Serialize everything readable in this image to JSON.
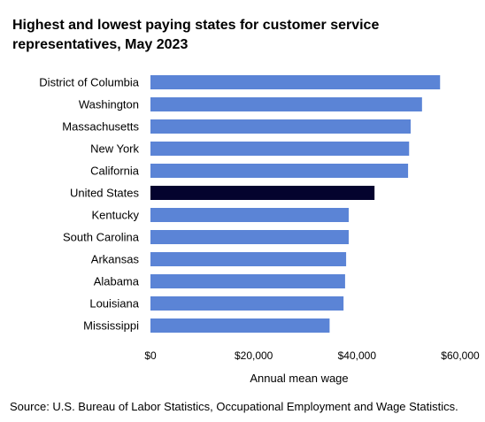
{
  "chart_data": {
    "type": "bar",
    "orientation": "horizontal",
    "title": "Highest and lowest paying states for customer service representatives, May 2023",
    "xlabel": "Annual mean wage",
    "ylabel": "",
    "categories": [
      "District of Columbia",
      "Washington",
      "Massachusetts",
      "New York",
      "California",
      "United States",
      "Kentucky",
      "South Carolina",
      "Arkansas",
      "Alabama",
      "Louisiana",
      "Mississippi"
    ],
    "values": [
      56100,
      52600,
      50400,
      50100,
      49900,
      43400,
      38400,
      38400,
      37900,
      37700,
      37400,
      34700
    ],
    "highlight_category": "United States",
    "colors": {
      "default": "#5B84D6",
      "highlight": "#04032E"
    },
    "xlim": [
      0,
      60000
    ],
    "xticks": [
      0,
      20000,
      40000,
      60000
    ],
    "xtick_labels": [
      "$0",
      "$20,000",
      "$40,000",
      "$60,000"
    ],
    "grid": false,
    "legend": "none"
  },
  "footer": {
    "source": "Source: U.S. Bureau of Labor Statistics, Occupational Employment and Wage Statistics."
  }
}
